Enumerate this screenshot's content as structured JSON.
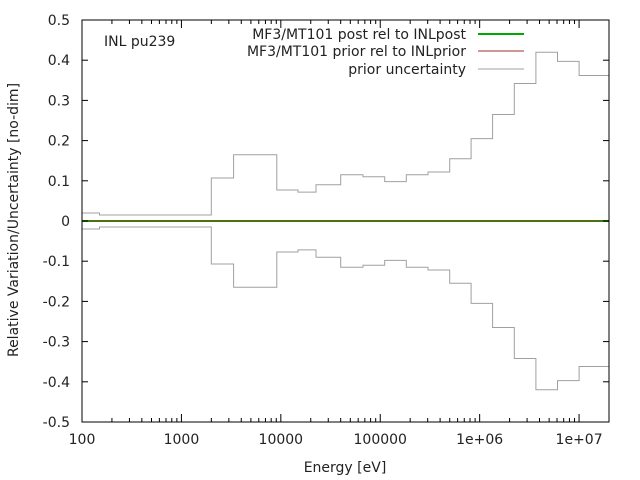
{
  "chart_data": {
    "type": "line",
    "title": "",
    "annotation": "INL pu239",
    "xlabel": "Energy [eV]",
    "ylabel": "Relative Variation/Uncertainty [no-dim]",
    "xscale": "log",
    "xlim": [
      100,
      20000000
    ],
    "ylim": [
      -0.5,
      0.5
    ],
    "x_ticks": [
      {
        "value": 100,
        "label": "100"
      },
      {
        "value": 1000,
        "label": "1000"
      },
      {
        "value": 10000,
        "label": "10000"
      },
      {
        "value": 100000,
        "label": "100000"
      },
      {
        "value": 1000000,
        "label": "1e+06"
      },
      {
        "value": 10000000,
        "label": "1e+07"
      }
    ],
    "y_ticks": [
      {
        "value": 0.5,
        "label": "0.5"
      },
      {
        "value": 0.4,
        "label": "0.4"
      },
      {
        "value": 0.3,
        "label": "0.3"
      },
      {
        "value": 0.2,
        "label": "0.2"
      },
      {
        "value": 0.1,
        "label": "0.1"
      },
      {
        "value": 0,
        "label": "0"
      },
      {
        "value": -0.1,
        "label": "-0.1"
      },
      {
        "value": -0.2,
        "label": "-0.2"
      },
      {
        "value": -0.3,
        "label": "-0.3"
      },
      {
        "value": -0.4,
        "label": "-0.4"
      },
      {
        "value": -0.5,
        "label": "-0.5"
      }
    ],
    "legend_position": "top-right",
    "series": [
      {
        "name": "MF3/MT101 post rel to INLpost",
        "color": "#00aa00",
        "style": "thick-line",
        "x": [
          100,
          20000000
        ],
        "y": [
          0,
          0
        ]
      },
      {
        "name": "MF3/MT101 prior rel to INLprior",
        "color": "#a0302a",
        "style": "thin-line",
        "x": [
          100,
          20000000
        ],
        "y": [
          0,
          0
        ]
      },
      {
        "name": "prior uncertainty",
        "color": "#a0a0a0",
        "style": "step",
        "mirrored": true,
        "edges": [
          100,
          150,
          2000,
          3350,
          9100,
          14900,
          22600,
          40000,
          67000,
          111000,
          183000,
          302000,
          500000,
          821000,
          1350000,
          2230000,
          3680000,
          6070000,
          10000000,
          20000000
        ],
        "values": [
          0.02,
          0.015,
          0.107,
          0.165,
          0.077,
          0.072,
          0.09,
          0.115,
          0.11,
          0.098,
          0.115,
          0.122,
          0.155,
          0.205,
          0.265,
          0.342,
          0.42,
          0.397,
          0.362
        ]
      }
    ]
  }
}
